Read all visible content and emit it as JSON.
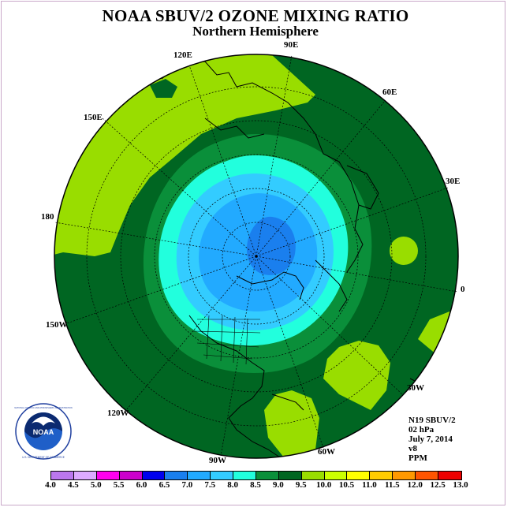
{
  "title": "NOAA SBUV/2 OZONE MIXING RATIO",
  "subtitle": "Northern Hemisphere",
  "info": {
    "instrument": "N19 SBUV/2",
    "level": "02 hPa",
    "date": "July 7, 2014",
    "version": "v8",
    "units": "PPM"
  },
  "longitude_labels": [
    "90E",
    "60E",
    "30E",
    "0",
    "30W",
    "60W",
    "90W",
    "120W",
    "150W",
    "180",
    "150E",
    "120E"
  ],
  "colorbar": {
    "ticks": [
      "4.0",
      "4.5",
      "5.0",
      "5.5",
      "6.0",
      "6.5",
      "7.0",
      "7.5",
      "8.0",
      "8.5",
      "9.0",
      "9.5",
      "10.0",
      "10.5",
      "11.0",
      "11.5",
      "12.0",
      "12.5",
      "13.0"
    ],
    "colors": [
      "#bb77ee",
      "#ddaaff",
      "#ff00ee",
      "#cc00cc",
      "#0000ee",
      "#1a7fee",
      "#22aaff",
      "#33ccff",
      "#22ffdd",
      "#0a8f3a",
      "#006622",
      "#99dd00",
      "#ccff00",
      "#ffff00",
      "#ffcc00",
      "#ff9900",
      "#ff5500",
      "#ee0000",
      "#8b5a3c"
    ]
  },
  "logo": {
    "text": "NOAA",
    "ring_text": "NATIONAL OCEANIC AND ATMOSPHERIC ADMINISTRATION",
    "bottom_text": "U.S. DEPARTMENT OF COMMERCE"
  },
  "colors": {
    "ocean_dark_green": "#006622",
    "mid_green": "#0a8f3a",
    "light_green": "#99dd00",
    "cyan": "#22ffdd",
    "light_blue": "#33ccff",
    "blue": "#22aaff",
    "deep_blue": "#1a7fee"
  }
}
